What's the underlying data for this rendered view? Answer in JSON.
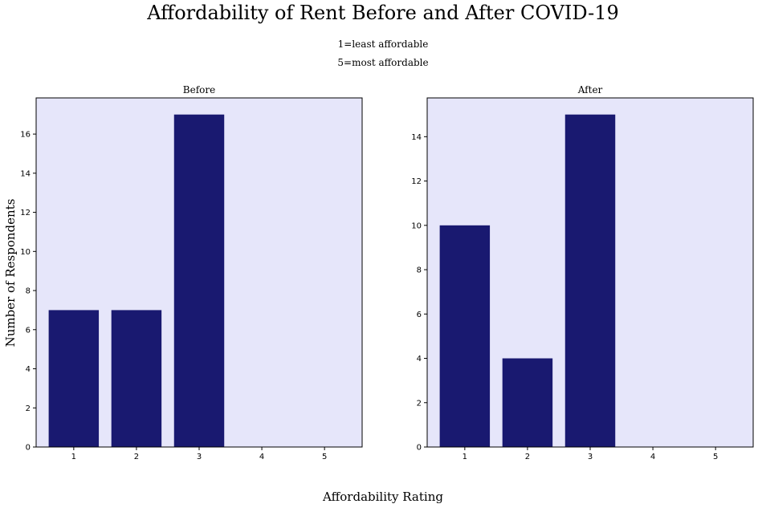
{
  "figure": {
    "title": "Affordability of Rent Before and After COVID-19",
    "subtitle_lines": [
      "1=least affordable",
      "5=most affordable"
    ],
    "ylabel": "Number of Respondents",
    "xlabel": "Affordability Rating"
  },
  "colors": {
    "plot_background": "#e6e6fa",
    "bar": "#191970",
    "axes": "#000000"
  },
  "chart_data": [
    {
      "type": "bar",
      "title": "Before",
      "categories": [
        "1",
        "2",
        "3",
        "4",
        "5"
      ],
      "values": [
        7,
        7,
        17,
        0,
        0
      ],
      "ylim": [
        0,
        17.85
      ],
      "yticks": [
        0,
        2,
        4,
        6,
        8,
        10,
        12,
        14,
        16
      ],
      "grid": false
    },
    {
      "type": "bar",
      "title": "After",
      "categories": [
        "1",
        "2",
        "3",
        "4",
        "5"
      ],
      "values": [
        10,
        4,
        15,
        0,
        0
      ],
      "ylim": [
        0,
        15.75
      ],
      "yticks": [
        0,
        2,
        4,
        6,
        8,
        10,
        12,
        14
      ],
      "grid": false
    }
  ]
}
